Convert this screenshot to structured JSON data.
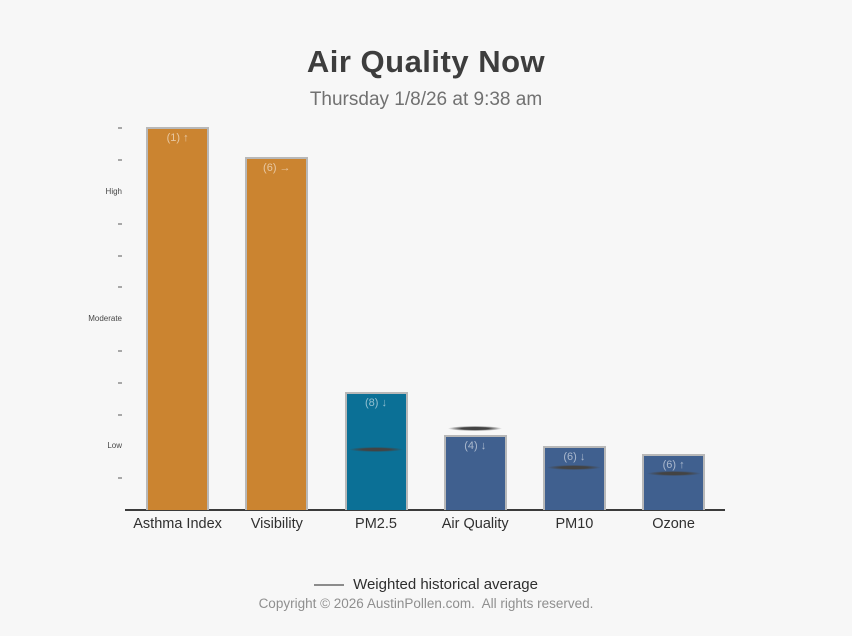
{
  "title": "Air Quality Now",
  "subtitle": "Thursday 1/8/26 at 9:38 am",
  "legend": {
    "label": "Weighted historical average"
  },
  "footer": {
    "copyright": "Copyright © 2026 AustinPollen.com.  All rights reserved."
  },
  "colors": {
    "background": "#f7f7f7",
    "orange": "#cb8430",
    "teal": "#0b7096",
    "slate": "#40608f",
    "bar_border": "#b8b8b8",
    "marker": "#434343",
    "axis_line": "#3b3b3b"
  },
  "chart_data": {
    "type": "bar",
    "title": "Air Quality Now",
    "subtitle": "Thursday 1/8/26 at 9:38 am",
    "categories": [
      "Asthma Index",
      "Visibility",
      "PM2.5",
      "Air Quality",
      "PM10",
      "Ozone"
    ],
    "values": [
      12.05,
      11.1,
      3.7,
      2.35,
      2.0,
      1.75
    ],
    "bar_labels": [
      "(1) ↑",
      "(6) →",
      "(8) ↓",
      "(4) ↓",
      "(6) ↓",
      "(6) ↑"
    ],
    "bar_colors": [
      "orange",
      "orange",
      "teal",
      "slate",
      "slate",
      "slate"
    ],
    "historical_averages": [
      null,
      null,
      1.9,
      2.55,
      1.35,
      1.15
    ],
    "y_axis": {
      "levels": [
        {
          "value": 2,
          "label": "Low"
        },
        {
          "value": 6,
          "label": "Moderate"
        },
        {
          "value": 10,
          "label": "High"
        }
      ],
      "tick_values": [
        1,
        3,
        4,
        5,
        7,
        8,
        9,
        11,
        12
      ],
      "ylim": [
        0,
        12.3
      ]
    },
    "legend": "Weighted historical average",
    "grid": false,
    "legend_position": "bottom-center"
  }
}
